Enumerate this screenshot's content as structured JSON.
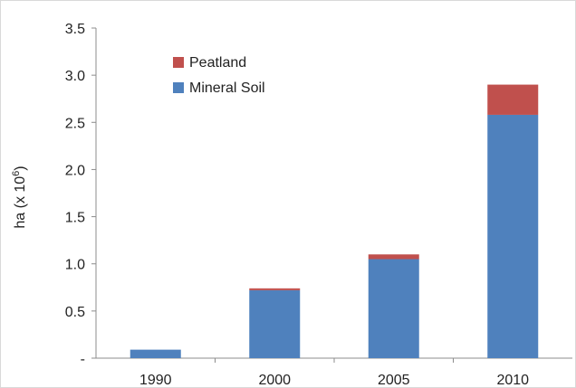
{
  "chart_data": {
    "type": "bar",
    "stacked": true,
    "title": "",
    "xlabel": "",
    "ylabel": "ha (x 10",
    "ylabel_sup": "6",
    "ylabel_close": ")",
    "categories": [
      "1990",
      "2000",
      "2005",
      "2010"
    ],
    "series": [
      {
        "name": "Mineral Soil",
        "color": "#4f81bd",
        "values": [
          0.09,
          0.72,
          1.05,
          2.58
        ]
      },
      {
        "name": "Peatland",
        "color": "#c0504d",
        "values": [
          0.0,
          0.02,
          0.05,
          0.32
        ]
      }
    ],
    "ylim": [
      0,
      3.5
    ],
    "yticks": [
      0,
      0.5,
      1.0,
      1.5,
      2.0,
      2.5,
      3.0,
      3.5
    ],
    "ytick_labels": [
      "-",
      "0.5",
      "1.0",
      "1.5",
      "2.0",
      "2.5",
      "3.0",
      "3.5"
    ],
    "grid": false,
    "legend_position": "top-left"
  }
}
